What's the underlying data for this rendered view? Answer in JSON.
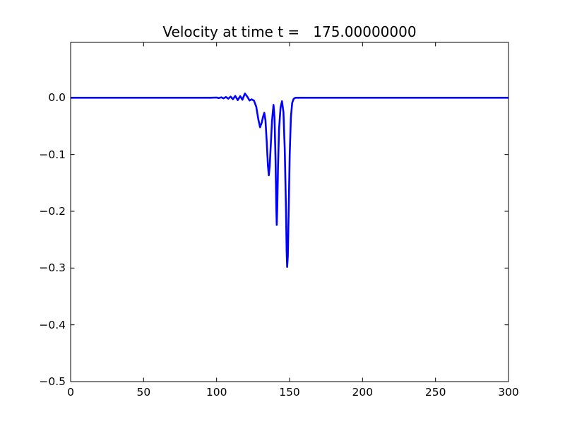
{
  "figure": {
    "background_color": "#ffffff",
    "spine_color": "#000000",
    "tick_color": "#000000"
  },
  "chart_data": {
    "type": "line",
    "title": "Velocity at time t =   175.00000000",
    "xlabel": "",
    "ylabel": "",
    "xlim": [
      0,
      300
    ],
    "ylim": [
      -0.5,
      0.0975
    ],
    "grid": false,
    "legend": null,
    "xticks": [
      0,
      50,
      100,
      150,
      200,
      250,
      300
    ],
    "xtick_labels": [
      "0",
      "50",
      "100",
      "150",
      "200",
      "250",
      "300"
    ],
    "yticks": [
      0.0,
      -0.1,
      -0.2,
      -0.3,
      -0.4,
      -0.5
    ],
    "ytick_labels": [
      "0.0",
      "−0.1",
      "−0.2",
      "−0.3",
      "−0.4",
      "−0.5"
    ],
    "series": [
      {
        "name": "velocity",
        "color": "#0000ff",
        "linewidth": 2.6,
        "points": [
          [
            0,
            0
          ],
          [
            40,
            0
          ],
          [
            80,
            0
          ],
          [
            96,
            0
          ],
          [
            100,
            0.0004
          ],
          [
            101.6,
            -0.0006
          ],
          [
            103.2,
            0.0008
          ],
          [
            104.8,
            -0.001
          ],
          [
            106.4,
            0.0013
          ],
          [
            108,
            -0.0016
          ],
          [
            109.6,
            0.002
          ],
          [
            111.2,
            -0.0025
          ],
          [
            112.8,
            0.0032
          ],
          [
            114.5,
            -0.0042
          ],
          [
            116.2,
            0.0028
          ],
          [
            117.7,
            -0.0035
          ],
          [
            119.4,
            0.0075
          ],
          [
            121.0,
            0.002
          ],
          [
            122.6,
            -0.0048
          ],
          [
            124.0,
            -0.0028
          ],
          [
            125.6,
            -0.005
          ],
          [
            127.2,
            -0.016
          ],
          [
            128.6,
            -0.038
          ],
          [
            129.8,
            -0.052
          ],
          [
            130.9,
            -0.044
          ],
          [
            131.9,
            -0.033
          ],
          [
            132.7,
            -0.0265
          ],
          [
            133.5,
            -0.04
          ],
          [
            134.4,
            -0.08
          ],
          [
            135.2,
            -0.12
          ],
          [
            135.8,
            -0.1365
          ],
          [
            136.4,
            -0.12
          ],
          [
            137.1,
            -0.085
          ],
          [
            138.0,
            -0.04
          ],
          [
            139.0,
            -0.0125
          ],
          [
            139.7,
            -0.035
          ],
          [
            140.4,
            -0.11
          ],
          [
            140.9,
            -0.19
          ],
          [
            141.2,
            -0.224
          ],
          [
            141.6,
            -0.19
          ],
          [
            142.1,
            -0.12
          ],
          [
            142.8,
            -0.055
          ],
          [
            143.8,
            -0.018
          ],
          [
            144.8,
            -0.0062
          ],
          [
            145.8,
            -0.025
          ],
          [
            146.7,
            -0.09
          ],
          [
            147.5,
            -0.19
          ],
          [
            148.0,
            -0.27
          ],
          [
            148.35,
            -0.298
          ],
          [
            148.8,
            -0.28
          ],
          [
            149.4,
            -0.2
          ],
          [
            150.1,
            -0.1
          ],
          [
            150.9,
            -0.035
          ],
          [
            151.8,
            -0.009
          ],
          [
            152.8,
            -0.002
          ],
          [
            154,
            0
          ],
          [
            160,
            0
          ],
          [
            200,
            0
          ],
          [
            250,
            0
          ],
          [
            300,
            0
          ]
        ]
      }
    ]
  }
}
